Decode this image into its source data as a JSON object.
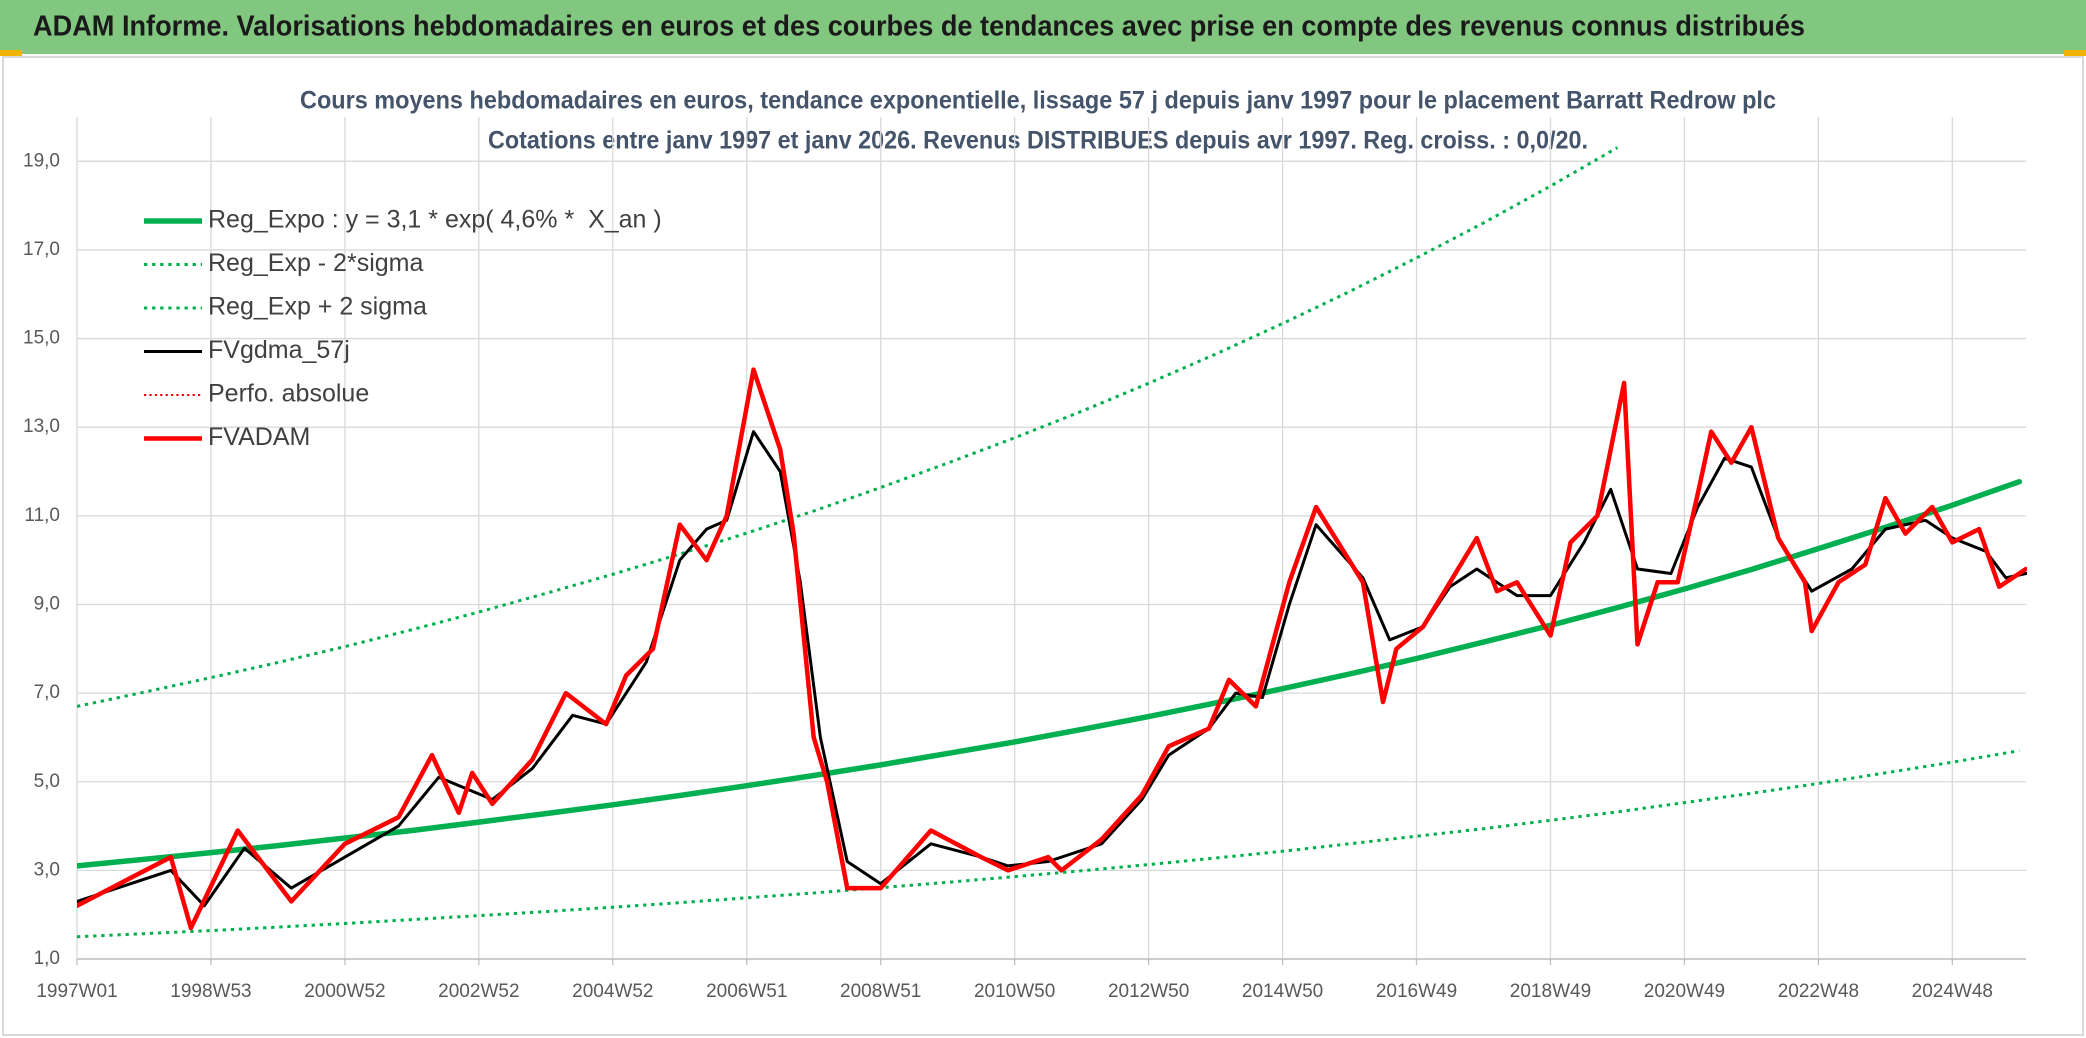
{
  "chart_data": {
    "type": "line",
    "title": "ADAM Informe. Valorisations hebdomadaires en euros et des courbes de tendances avec prise en compte des revenus connus distribués",
    "subtitle": [
      "Cours moyens hebdomadaires en euros, tendance exponentielle, lissage 57 j depuis janv 1997 pour le placement Barratt Redrow plc",
      "Cotations entre janv 1997 et janv 2026. Revenus DISTRIBUES depuis avr 1997. Reg. croiss. : 0,0/20."
    ],
    "xlim": [
      1997.0,
      2026.1
    ],
    "xticks": [
      {
        "value": 1997,
        "label": "1997W01"
      },
      {
        "value": 1999,
        "label": "1998W53"
      },
      {
        "value": 2001,
        "label": "2000W52"
      },
      {
        "value": 2003,
        "label": "2002W52"
      },
      {
        "value": 2005,
        "label": "2004W52"
      },
      {
        "value": 2007,
        "label": "2006W51"
      },
      {
        "value": 2009,
        "label": "2008W51"
      },
      {
        "value": 2011,
        "label": "2010W50"
      },
      {
        "value": 2013,
        "label": "2012W50"
      },
      {
        "value": 2015,
        "label": "2014W50"
      },
      {
        "value": 2017,
        "label": "2016W49"
      },
      {
        "value": 2019,
        "label": "2018W49"
      },
      {
        "value": 2021,
        "label": "2020W49"
      },
      {
        "value": 2023,
        "label": "2022W48"
      },
      {
        "value": 2025,
        "label": "2024W48"
      }
    ],
    "ylim": [
      1,
      20
    ],
    "yticks": [
      {
        "value": 1,
        "label": "1,0"
      },
      {
        "value": 3,
        "label": "3,0"
      },
      {
        "value": 5,
        "label": "5,0"
      },
      {
        "value": 7,
        "label": "7,0"
      },
      {
        "value": 9,
        "label": "9,0"
      },
      {
        "value": 11,
        "label": "11,0"
      },
      {
        "value": 13,
        "label": "13,0"
      },
      {
        "value": 15,
        "label": "15,0"
      },
      {
        "value": 17,
        "label": "17,0"
      },
      {
        "value": 19,
        "label": "19,0"
      }
    ],
    "grid": true,
    "legend": "upper left",
    "series": [
      {
        "name": "Reg_Expo : y = 3,1 * exp( 4,6% *  X_an )",
        "color": "#00b050",
        "width": 5.5,
        "dash": "solid",
        "x": [
          1997,
          1998,
          1999,
          2000,
          2001,
          2002,
          2003,
          2004,
          2005,
          2006,
          2007,
          2008,
          2009,
          2010,
          2011,
          2012,
          2013,
          2014,
          2015,
          2016,
          2017,
          2018,
          2019,
          2020,
          2021,
          2022,
          2023,
          2024,
          2025,
          2026
        ],
        "values": [
          3.1,
          3.25,
          3.4,
          3.56,
          3.73,
          3.9,
          4.09,
          4.28,
          4.48,
          4.69,
          4.91,
          5.14,
          5.38,
          5.64,
          5.9,
          6.18,
          6.47,
          6.78,
          7.1,
          7.43,
          7.78,
          8.15,
          8.53,
          8.93,
          9.35,
          9.79,
          10.26,
          10.74,
          11.24,
          11.77
        ]
      },
      {
        "name": "Reg_Exp - 2*sigma",
        "color": "#00b050",
        "width": 3,
        "dash": "dotted",
        "x": [
          1997,
          1998,
          1999,
          2000,
          2001,
          2002,
          2003,
          2004,
          2005,
          2006,
          2007,
          2008,
          2009,
          2010,
          2011,
          2012,
          2013,
          2014,
          2015,
          2016,
          2017,
          2018,
          2019,
          2020,
          2021,
          2022,
          2023,
          2024,
          2025,
          2026
        ],
        "values": [
          1.5,
          1.57,
          1.64,
          1.72,
          1.8,
          1.89,
          1.98,
          2.07,
          2.17,
          2.27,
          2.38,
          2.49,
          2.61,
          2.73,
          2.86,
          2.99,
          3.13,
          3.28,
          3.43,
          3.6,
          3.77,
          3.94,
          4.13,
          4.32,
          4.53,
          4.74,
          4.96,
          5.2,
          5.44,
          5.7
        ]
      },
      {
        "name": "Reg_Exp + 2 sigma",
        "color": "#00b050",
        "width": 3,
        "dash": "dotted",
        "x": [
          1997,
          1998,
          1999,
          2000,
          2001,
          2002,
          2003,
          2004,
          2005,
          2006,
          2007,
          2008,
          2009,
          2010,
          2011,
          2012,
          2013,
          2014,
          2015,
          2016,
          2017,
          2018,
          2019,
          2020
        ],
        "values": [
          6.7,
          7.02,
          7.35,
          7.69,
          8.05,
          8.43,
          8.83,
          9.25,
          9.68,
          10.14,
          10.61,
          11.11,
          11.64,
          12.19,
          12.76,
          13.36,
          13.99,
          14.65,
          15.34,
          16.06,
          16.82,
          17.61,
          18.44,
          19.31
        ]
      },
      {
        "name": "FVgdma_57j",
        "color": "#000000",
        "width": 3,
        "dash": "solid",
        "x": [
          1997.0,
          1998.4,
          1998.9,
          1999.5,
          2000.2,
          2001.0,
          2001.8,
          2002.4,
          2003.2,
          2003.8,
          2004.4,
          2004.9,
          2005.5,
          2006.0,
          2006.4,
          2006.7,
          2007.1,
          2007.5,
          2007.8,
          2008.1,
          2008.5,
          2009.0,
          2009.75,
          2010.5,
          2010.9,
          2011.5,
          2012.3,
          2012.9,
          2013.3,
          2013.9,
          2014.3,
          2014.7,
          2015.1,
          2015.5,
          2016.2,
          2016.6,
          2017.1,
          2017.5,
          2017.9,
          2018.5,
          2019.0,
          2019.5,
          2019.9,
          2020.3,
          2020.8,
          2021.2,
          2021.6,
          2022.0,
          2022.4,
          2022.9,
          2023.5,
          2024.0,
          2024.6,
          2025.0,
          2025.5,
          2025.8,
          2026.1
        ],
        "values": [
          2.3,
          3.0,
          2.2,
          3.5,
          2.6,
          3.3,
          4.0,
          5.1,
          4.6,
          5.3,
          6.5,
          6.3,
          7.7,
          10.0,
          10.7,
          10.9,
          12.9,
          12.0,
          9.5,
          6.0,
          3.2,
          2.7,
          3.6,
          3.3,
          3.1,
          3.2,
          3.6,
          4.6,
          5.6,
          6.2,
          7.0,
          6.9,
          9.0,
          10.8,
          9.6,
          8.2,
          8.5,
          9.4,
          9.8,
          9.2,
          9.2,
          10.4,
          11.6,
          9.8,
          9.7,
          11.2,
          12.3,
          12.1,
          10.5,
          9.3,
          9.8,
          10.7,
          10.9,
          10.5,
          10.2,
          9.6,
          9.7
        ]
      },
      {
        "name": "Perfo. absolue",
        "color": "#ff0000",
        "width": 2,
        "dash": "dotted"
      },
      {
        "name": "FVADAM",
        "color": "#ff0000",
        "width": 4.5,
        "dash": "solid",
        "x": [
          1997.0,
          1998.4,
          1998.7,
          1999.4,
          2000.2,
          2001.0,
          2001.8,
          2002.3,
          2002.7,
          2002.9,
          2003.2,
          2003.8,
          2004.3,
          2004.9,
          2005.2,
          2005.6,
          2006.0,
          2006.4,
          2006.7,
          2007.1,
          2007.5,
          2007.7,
          2008.0,
          2008.2,
          2008.5,
          2009.0,
          2009.75,
          2010.5,
          2010.9,
          2011.5,
          2011.7,
          2012.3,
          2012.9,
          2013.3,
          2013.9,
          2014.2,
          2014.6,
          2015.1,
          2015.5,
          2016.2,
          2016.5,
          2016.7,
          2017.1,
          2017.5,
          2017.9,
          2018.2,
          2018.5,
          2019.0,
          2019.3,
          2019.7,
          2020.1,
          2020.3,
          2020.6,
          2020.9,
          2021.2,
          2021.4,
          2021.7,
          2022.0,
          2022.4,
          2022.8,
          2022.9,
          2023.3,
          2023.7,
          2024.0,
          2024.3,
          2024.7,
          2025.0,
          2025.4,
          2025.7,
          2026.1
        ],
        "values": [
          2.2,
          3.3,
          1.7,
          3.9,
          2.3,
          3.6,
          4.2,
          5.6,
          4.3,
          5.2,
          4.5,
          5.5,
          7.0,
          6.3,
          7.4,
          8.0,
          10.8,
          10.0,
          11.0,
          14.3,
          12.5,
          10.6,
          6.0,
          5.0,
          2.6,
          2.6,
          3.9,
          3.3,
          3.0,
          3.3,
          3.0,
          3.7,
          4.7,
          5.8,
          6.2,
          7.3,
          6.7,
          9.5,
          11.2,
          9.5,
          6.8,
          8.0,
          8.5,
          9.5,
          10.5,
          9.3,
          9.5,
          8.3,
          10.4,
          11.0,
          14.0,
          8.1,
          9.5,
          9.5,
          11.5,
          12.9,
          12.2,
          13.0,
          10.5,
          9.5,
          8.4,
          9.5,
          9.9,
          11.4,
          10.6,
          11.2,
          10.4,
          10.7,
          9.4,
          9.8
        ]
      }
    ]
  }
}
